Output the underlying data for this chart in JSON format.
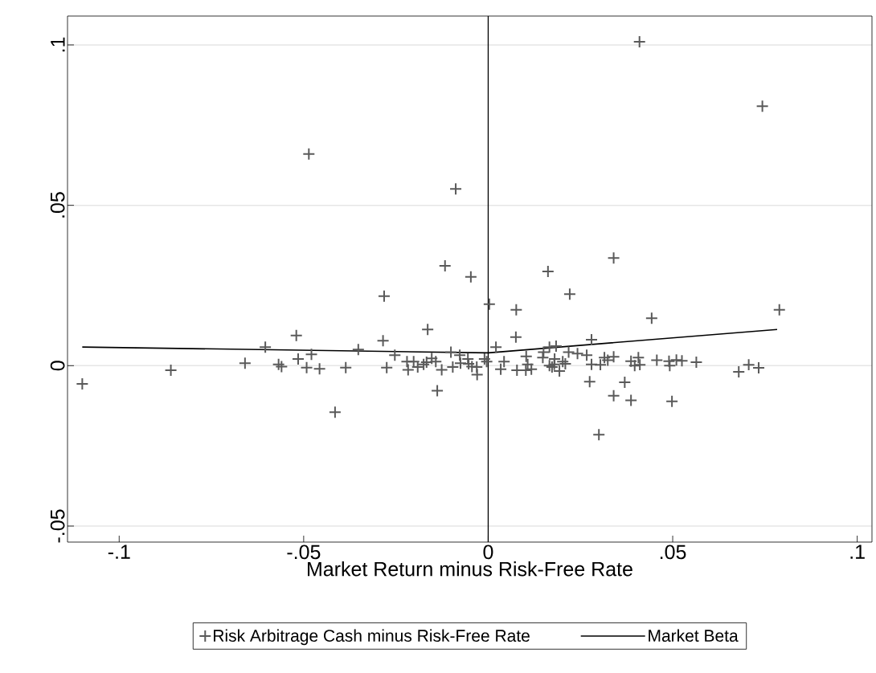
{
  "chart_data": {
    "type": "scatter",
    "xlabel": "Market Return minus Risk-Free Rate",
    "xlim": [
      -0.114,
      0.104
    ],
    "ylim": [
      -0.055,
      0.109
    ],
    "xticks": [
      {
        "value": -0.1,
        "label": "-.1"
      },
      {
        "value": -0.05,
        "label": "-.05"
      },
      0,
      {
        "value": 0.05,
        "label": ".05"
      },
      {
        "value": 0.1,
        "label": ".1"
      }
    ],
    "yticks": [
      {
        "value": -0.05,
        "label": "-.05"
      },
      0,
      {
        "value": 0.05,
        "label": ".05"
      },
      {
        "value": 0.1,
        "label": ".1"
      }
    ],
    "grid": "y",
    "legend": "bottom",
    "marker": "cross",
    "ref_lines": [
      {
        "axis": "x",
        "value": 0,
        "color": "#000000"
      }
    ],
    "series": [
      {
        "name": "Risk Arbitrage Cash minus Risk-Free Rate",
        "color": "#5a5a5a",
        "x": [
          -0.11,
          -0.086,
          -0.0659,
          -0.0604,
          -0.0568,
          -0.056,
          -0.052,
          -0.0515,
          -0.0479,
          -0.0492,
          -0.0457,
          -0.0486,
          -0.0415,
          -0.0386,
          -0.0352,
          -0.0285,
          -0.0282,
          -0.0275,
          -0.0253,
          -0.022,
          -0.0217,
          -0.0202,
          -0.0191,
          -0.0175,
          -0.0167,
          -0.0164,
          -0.0153,
          -0.0142,
          -0.0138,
          -0.0126,
          -0.0117,
          -0.0101,
          -0.0096,
          -0.0088,
          -0.0077,
          -0.0075,
          -0.0055,
          -0.0053,
          -0.0047,
          -0.0044,
          -0.0031,
          -0.003,
          -0.001,
          -0.0004,
          0.0003,
          0.0021,
          0.0034,
          0.0043,
          0.0075,
          0.0076,
          0.0078,
          0.0102,
          0.0103,
          0.0107,
          0.0117,
          0.0148,
          0.015,
          0.0162,
          0.0166,
          0.0166,
          0.0173,
          0.0179,
          0.018,
          0.0184,
          0.0193,
          0.0202,
          0.0209,
          0.0218,
          0.0221,
          0.0242,
          0.0267,
          0.0275,
          0.028,
          0.028,
          0.03,
          0.0304,
          0.0315,
          0.0324,
          0.034,
          0.034,
          0.034,
          0.037,
          0.0387,
          0.0387,
          0.0397,
          0.0407,
          0.041,
          0.0411,
          0.0443,
          0.0457,
          0.049,
          0.0492,
          0.0498,
          0.051,
          0.0525,
          0.0564,
          0.0679,
          0.0706,
          0.0733,
          0.0743,
          0.0789
        ],
        "values": [
          -0.0057,
          -0.0014,
          0.0008,
          0.0058,
          0.0004,
          -0.0003,
          0.0094,
          0.0021,
          0.0035,
          -0.0006,
          -0.001,
          0.066,
          -0.0145,
          -0.0006,
          0.005,
          0.0078,
          0.0217,
          -0.0006,
          0.0033,
          0.0013,
          -0.0013,
          0.0013,
          -0.0004,
          0.0004,
          0.0011,
          0.0113,
          0.0023,
          0.0013,
          -0.0078,
          -0.0013,
          0.0311,
          0.0042,
          -0.0004,
          0.0551,
          0.0033,
          0.0008,
          0.0021,
          0.0006,
          0.0277,
          -0.0003,
          -0.0004,
          -0.0028,
          0.0021,
          0.0013,
          0.0192,
          0.0058,
          -0.0011,
          0.0013,
          0.0089,
          0.0174,
          -0.0014,
          -0.0014,
          0.0029,
          0.0004,
          -0.0011,
          0.0025,
          0.0042,
          0.0294,
          0.0058,
          0,
          -0.0004,
          0.0004,
          0.0021,
          0.0061,
          -0.0017,
          0.0013,
          0.0006,
          0.0042,
          0.0223,
          0.0038,
          0.0033,
          -0.005,
          0.0081,
          0.0004,
          -0.0215,
          0.0003,
          0.0025,
          0.0017,
          0.0028,
          -0.0094,
          0.0336,
          -0.0052,
          0.0014,
          -0.0108,
          0,
          0.0025,
          0.101,
          0.0003,
          0.0148,
          0.0017,
          0.0014,
          0,
          -0.0111,
          0.0018,
          0.0015,
          0.0011,
          -0.0019,
          0.0003,
          -0.0007,
          0.0809,
          0.0174
        ]
      },
      {
        "name": "Market Beta",
        "type": "line",
        "color": "#000000",
        "marker": "none",
        "line_style": "solid",
        "x": [
          -0.11,
          0,
          0.0783
        ],
        "values": [
          0.0058,
          0.004,
          0.0113
        ]
      }
    ]
  }
}
